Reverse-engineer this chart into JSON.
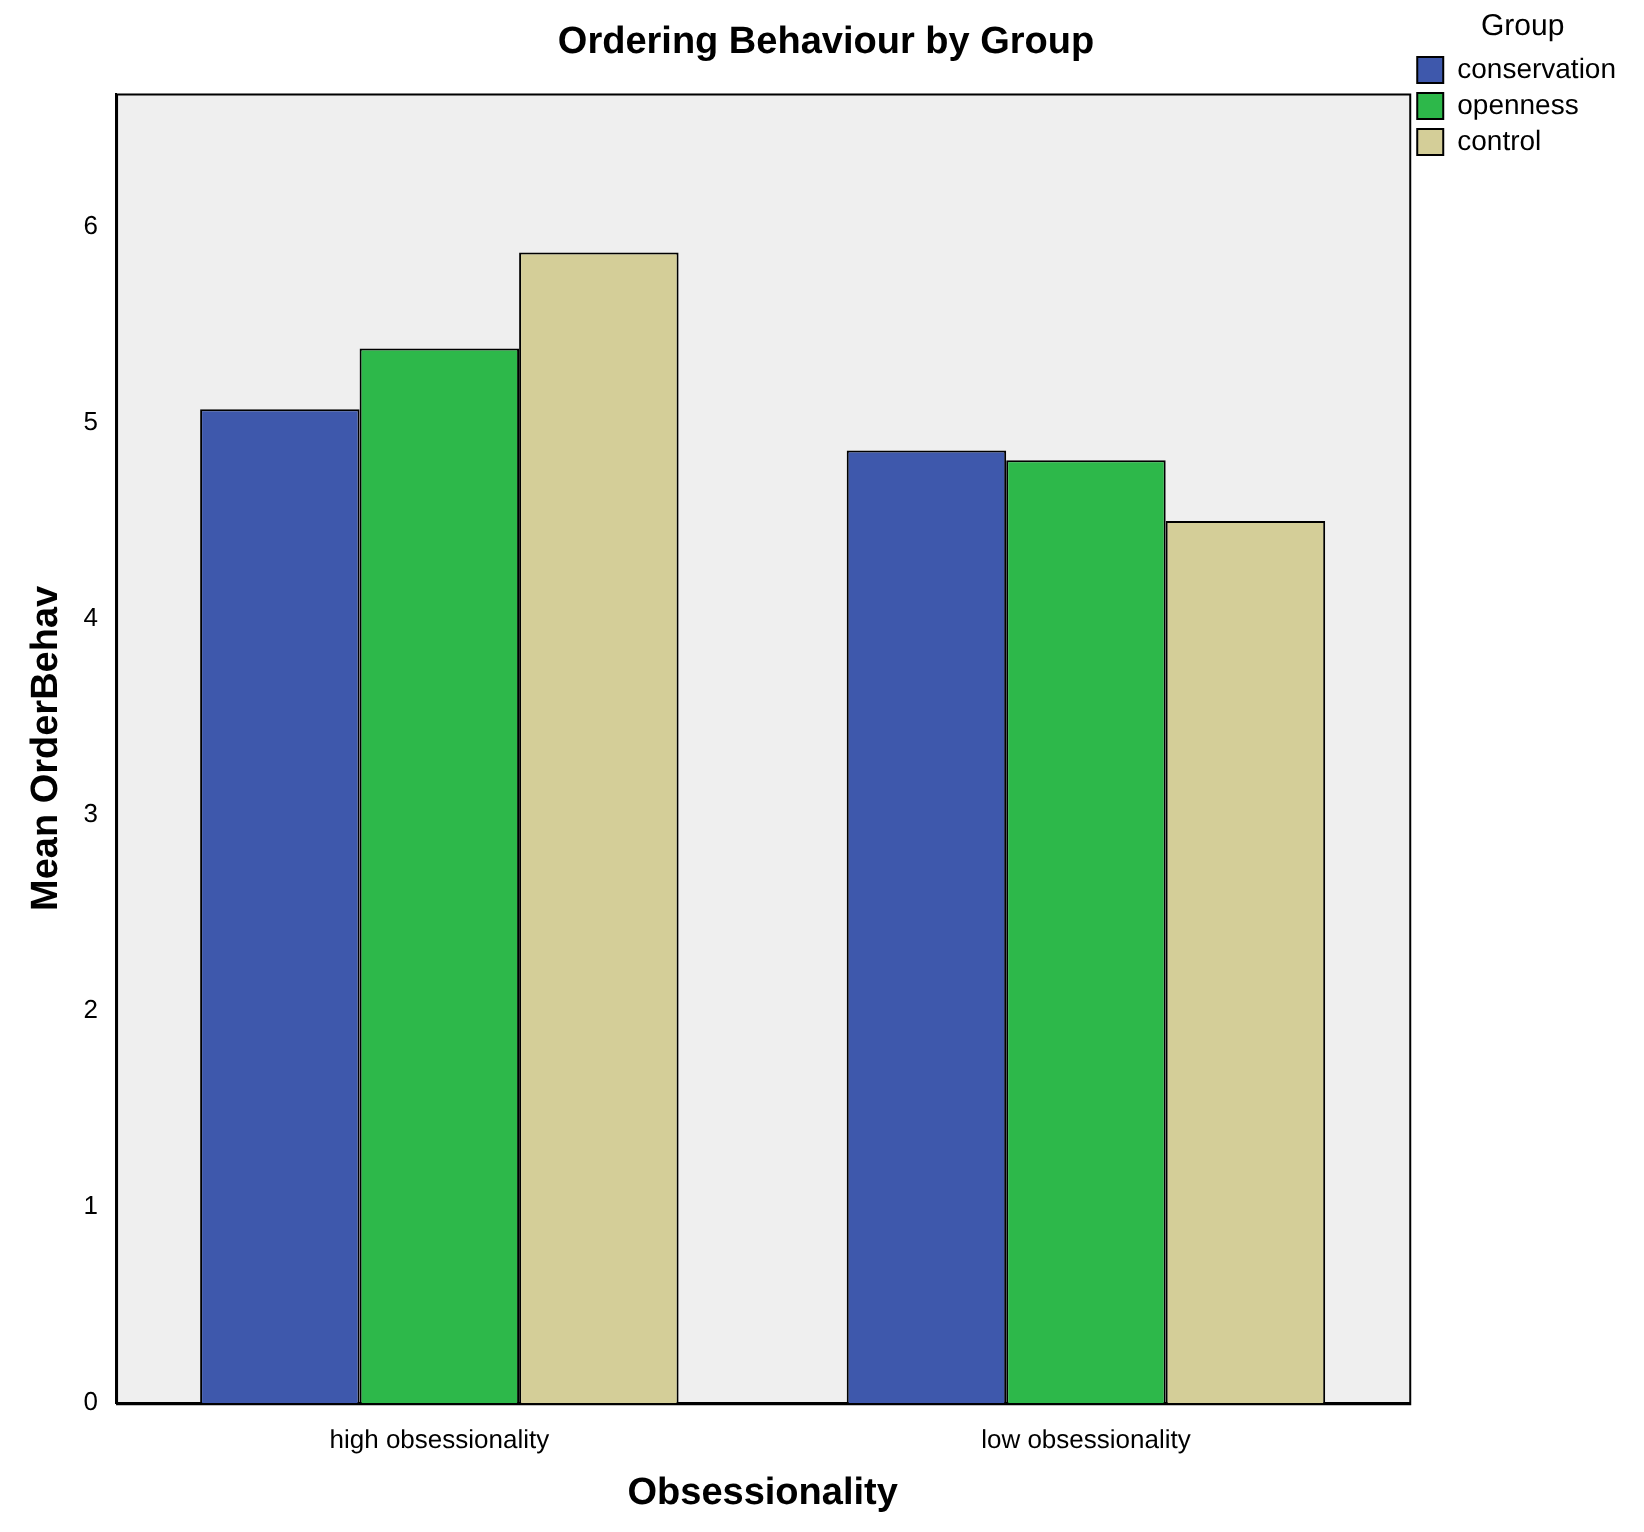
{
  "chart_data": {
    "type": "bar",
    "title": "Ordering Behaviour by Group",
    "xlabel": "Obsessionality",
    "ylabel": "Mean OrderBehav",
    "legend_title": "Group",
    "legend": "top right",
    "grid": false,
    "categories": [
      "high obsessionality",
      "low obsessionality"
    ],
    "series": [
      {
        "name": "conservation",
        "color": "#3e58ac",
        "values": [
          5.07,
          4.86
        ]
      },
      {
        "name": "openness",
        "color": "#2db84a",
        "values": [
          5.38,
          4.81
        ]
      },
      {
        "name": "control",
        "color": "#d4ce98",
        "values": [
          5.87,
          4.5
        ]
      }
    ],
    "ylim": [
      0,
      6.68
    ],
    "yticks": [
      0,
      1,
      2,
      3,
      4,
      5,
      6
    ]
  }
}
